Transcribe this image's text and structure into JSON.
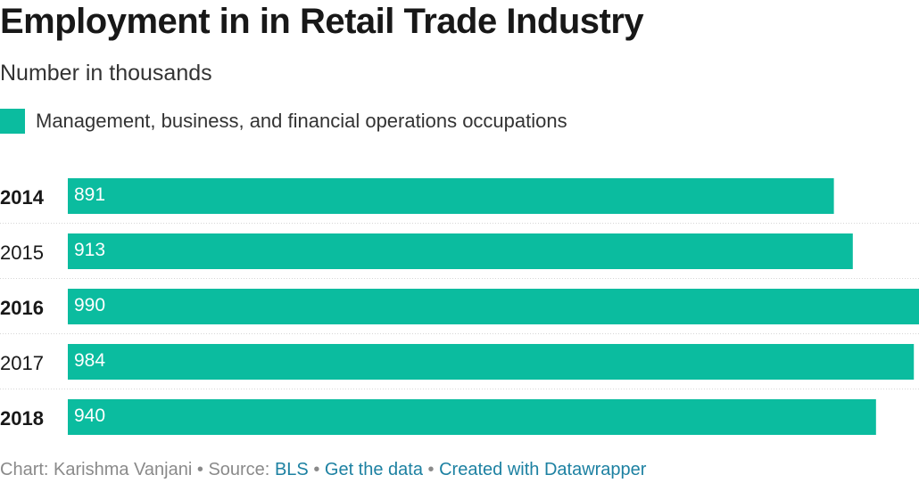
{
  "title": "Employment in in Retail Trade Industry",
  "subtitle": "Number in thousands",
  "legend": {
    "label": "Management, business, and financial operations occupations",
    "color": "#0bbc9f"
  },
  "footer": {
    "prefix": "Chart: Karishma Vanjani",
    "separator": "•",
    "source_prefix": "Source:",
    "source_link": "BLS",
    "get_data": "Get the data",
    "created_with": "Created with Datawrapper",
    "link_color": "#1d81a2"
  },
  "chart_data": {
    "type": "bar",
    "orientation": "horizontal",
    "title": "Employment in in Retail Trade Industry",
    "subtitle": "Number in thousands",
    "categories": [
      "2014",
      "2015",
      "2016",
      "2017",
      "2018"
    ],
    "bold_categories": [
      "2014",
      "2016",
      "2018"
    ],
    "series": [
      {
        "name": "Management, business, and financial operations occupations",
        "color": "#0bbc9f",
        "values": [
          891,
          913,
          990,
          984,
          940
        ]
      }
    ],
    "xlim": [
      0,
      990
    ],
    "grid": false,
    "row_separators": true,
    "legend_position": "top-left",
    "data_labels": "inside-left"
  }
}
